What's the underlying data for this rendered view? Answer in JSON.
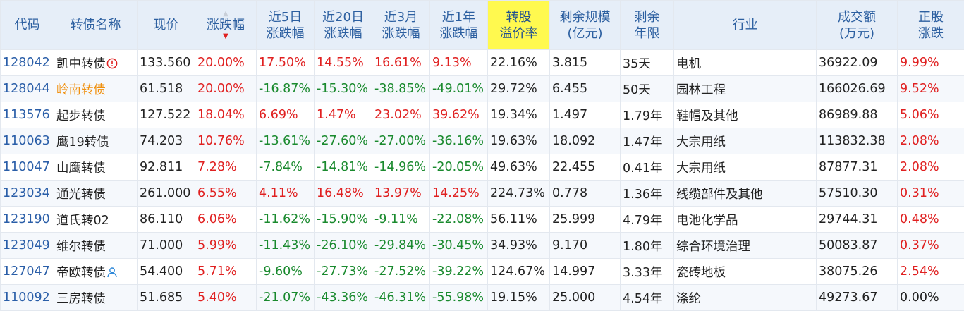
{
  "colors": {
    "up": "#e02020",
    "down": "#1a8a2e",
    "header_bg": "#e6eef8",
    "header_text": "#2c5fa0",
    "highlight": "#fff94f",
    "code": "#2a5ea8",
    "orange_name": "#f0900e"
  },
  "columns": [
    {
      "key": "code",
      "lines": [
        "代码"
      ]
    },
    {
      "key": "name",
      "lines": [
        "转债名称"
      ]
    },
    {
      "key": "price",
      "lines": [
        "现价"
      ]
    },
    {
      "key": "chg",
      "lines": [
        "涨跌幅"
      ],
      "sorted": "desc"
    },
    {
      "key": "chg5d",
      "lines": [
        "近5日",
        "涨跌幅"
      ]
    },
    {
      "key": "chg20d",
      "lines": [
        "近20日",
        "涨跌幅"
      ]
    },
    {
      "key": "chg3m",
      "lines": [
        "近3月",
        "涨跌幅"
      ]
    },
    {
      "key": "chg1y",
      "lines": [
        "近1年",
        "涨跌幅"
      ]
    },
    {
      "key": "premium",
      "lines": [
        "转股",
        "溢价率"
      ],
      "highlight": true
    },
    {
      "key": "size",
      "lines": [
        "剩余规模",
        "(亿元)"
      ]
    },
    {
      "key": "term",
      "lines": [
        "剩余",
        "年限"
      ]
    },
    {
      "key": "industry",
      "lines": [
        "行业"
      ]
    },
    {
      "key": "volume",
      "lines": [
        "成交额",
        "(万元)"
      ]
    },
    {
      "key": "stock_chg",
      "lines": [
        "正股",
        "涨跌"
      ]
    }
  ],
  "rows": [
    {
      "code": "128042",
      "name": "凯中转债",
      "name_icon": "warning-circle-icon",
      "price": "133.560",
      "chg": "20.00%",
      "chg5d": "17.50%",
      "chg20d": "14.55%",
      "chg3m": "16.61%",
      "chg1y": "9.13%",
      "premium": "22.16%",
      "size": "3.815",
      "term": "35天",
      "industry": "电机",
      "volume": "36922.09",
      "stock_chg": "9.99%"
    },
    {
      "code": "128044",
      "name": "岭南转债",
      "name_style": "orange",
      "price": "61.518",
      "chg": "20.00%",
      "chg5d": "-16.87%",
      "chg20d": "-15.30%",
      "chg3m": "-38.85%",
      "chg1y": "-49.01%",
      "premium": "29.72%",
      "size": "6.455",
      "term": "50天",
      "industry": "园林工程",
      "volume": "166026.69",
      "stock_chg": "9.52%"
    },
    {
      "code": "113576",
      "name": "起步转债",
      "price": "127.522",
      "chg": "18.04%",
      "chg5d": "6.69%",
      "chg20d": "1.47%",
      "chg3m": "23.02%",
      "chg1y": "39.62%",
      "premium": "19.34%",
      "size": "1.497",
      "term": "1.79年",
      "industry": "鞋帽及其他",
      "volume": "86989.88",
      "stock_chg": "5.06%"
    },
    {
      "code": "110063",
      "name": "鹰19转债",
      "price": "74.203",
      "chg": "10.76%",
      "chg5d": "-13.61%",
      "chg20d": "-27.60%",
      "chg3m": "-27.00%",
      "chg1y": "-36.16%",
      "premium": "19.63%",
      "size": "18.092",
      "term": "1.47年",
      "industry": "大宗用纸",
      "volume": "113832.38",
      "stock_chg": "2.08%"
    },
    {
      "code": "110047",
      "name": "山鹰转债",
      "price": "92.811",
      "chg": "7.28%",
      "chg5d": "-7.84%",
      "chg20d": "-14.81%",
      "chg3m": "-14.96%",
      "chg1y": "-20.05%",
      "premium": "49.63%",
      "size": "22.455",
      "term": "0.41年",
      "industry": "大宗用纸",
      "volume": "87877.31",
      "stock_chg": "2.08%"
    },
    {
      "code": "123034",
      "name": "通光转债",
      "price": "261.000",
      "chg": "6.55%",
      "chg5d": "4.11%",
      "chg20d": "16.48%",
      "chg3m": "13.97%",
      "chg1y": "14.25%",
      "premium": "224.73%",
      "size": "0.778",
      "term": "1.36年",
      "industry": "线缆部件及其他",
      "volume": "57510.30",
      "stock_chg": "0.31%"
    },
    {
      "code": "123190",
      "name": "道氏转02",
      "price": "86.110",
      "chg": "6.06%",
      "chg5d": "-11.62%",
      "chg20d": "-15.90%",
      "chg3m": "-9.11%",
      "chg1y": "-22.08%",
      "premium": "56.11%",
      "size": "25.999",
      "term": "4.79年",
      "industry": "电池化学品",
      "volume": "29744.31",
      "stock_chg": "0.48%"
    },
    {
      "code": "123049",
      "name": "维尔转债",
      "price": "71.000",
      "chg": "5.99%",
      "chg5d": "-11.43%",
      "chg20d": "-26.10%",
      "chg3m": "-29.84%",
      "chg1y": "-30.45%",
      "premium": "34.93%",
      "size": "9.170",
      "term": "1.80年",
      "industry": "综合环境治理",
      "volume": "50083.87",
      "stock_chg": "0.37%"
    },
    {
      "code": "127047",
      "name": "帝欧转债",
      "name_icon": "user-icon",
      "price": "54.400",
      "chg": "5.71%",
      "chg5d": "-9.60%",
      "chg20d": "-27.73%",
      "chg3m": "-27.52%",
      "chg1y": "-39.22%",
      "premium": "124.67%",
      "size": "14.997",
      "term": "3.33年",
      "industry": "瓷砖地板",
      "volume": "38075.26",
      "stock_chg": "2.54%"
    },
    {
      "code": "110092",
      "name": "三房转债",
      "price": "51.685",
      "chg": "5.40%",
      "chg5d": "-21.07%",
      "chg20d": "-43.36%",
      "chg3m": "-46.31%",
      "chg1y": "-55.98%",
      "premium": "19.15%",
      "size": "25.000",
      "term": "4.54年",
      "industry": "涤纶",
      "volume": "49273.67",
      "stock_chg": "0.00%"
    }
  ]
}
